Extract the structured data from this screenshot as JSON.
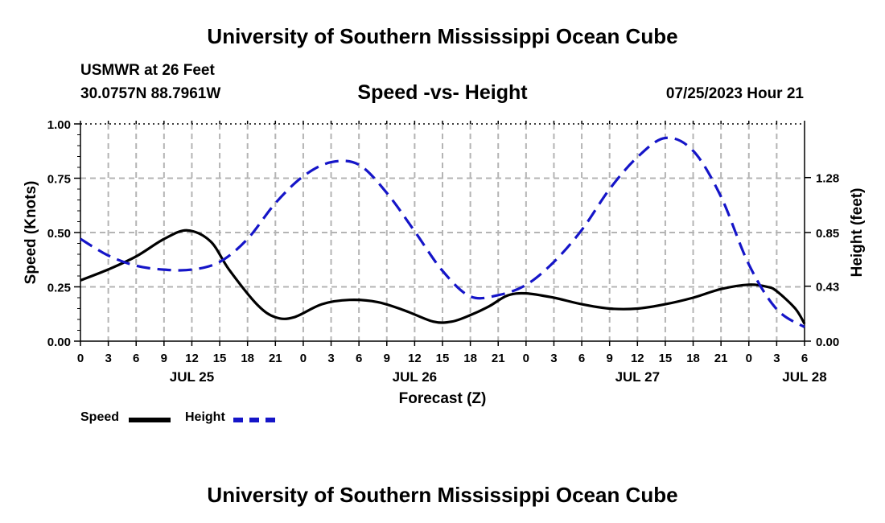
{
  "page": {
    "title_top": "University of Southern Mississippi Ocean Cube",
    "title_bottom": "University of Southern Mississippi Ocean Cube",
    "station": "USMWR at 26 Feet",
    "location": "30.0757N  88.7961W",
    "datetime": "07/25/2023 Hour 21"
  },
  "legend": {
    "speed_label": "Speed",
    "height_label": "Height"
  },
  "chart_data": {
    "type": "line",
    "title": "Speed -vs- Height",
    "xlabel": "Forecast (Z)",
    "ylabel": "Speed (Knots)",
    "y2label": "Height (feet)",
    "xlim": [
      0,
      78
    ],
    "ylim": [
      0,
      1.0
    ],
    "y2lim": [
      0,
      1.7
    ],
    "yticks": [
      "0.00",
      "0.25",
      "0.50",
      "0.75",
      "1.00"
    ],
    "y2ticks": [
      "0.00",
      "0.43",
      "0.85",
      "1.28"
    ],
    "xtick_labels": [
      "0",
      "3",
      "6",
      "9",
      "12",
      "15",
      "18",
      "21",
      "0",
      "3",
      "6",
      "9",
      "12",
      "15",
      "18",
      "21",
      "0",
      "3",
      "6",
      "9",
      "12",
      "15",
      "18",
      "21",
      "0",
      "3",
      "6"
    ],
    "date_labels": [
      {
        "label": "JUL 25",
        "hour": 12
      },
      {
        "label": "JUL 26",
        "hour": 36
      },
      {
        "label": "JUL 27",
        "hour": 60
      },
      {
        "label": "JUL 28",
        "hour": 78
      }
    ],
    "grid": true,
    "colors": {
      "speed": "#000000",
      "height": "#1515c8",
      "grid": "#b4b4b4"
    },
    "series": [
      {
        "name": "Speed",
        "axis": "left",
        "style": "solid",
        "x": [
          0,
          3,
          6,
          9,
          11.5,
          14,
          16,
          19,
          21,
          23,
          26,
          29,
          32,
          35,
          38,
          40,
          42,
          44,
          46,
          48,
          51,
          54,
          57,
          60,
          63,
          66,
          69,
          72,
          74,
          75,
          77,
          78
        ],
        "y": [
          0.28,
          0.33,
          0.39,
          0.47,
          0.51,
          0.46,
          0.33,
          0.17,
          0.11,
          0.11,
          0.17,
          0.19,
          0.18,
          0.14,
          0.09,
          0.09,
          0.12,
          0.16,
          0.21,
          0.22,
          0.2,
          0.17,
          0.15,
          0.15,
          0.17,
          0.2,
          0.24,
          0.26,
          0.25,
          0.23,
          0.15,
          0.08
        ]
      },
      {
        "name": "Height",
        "axis": "right",
        "style": "dashed",
        "x": [
          0,
          3,
          6,
          9,
          12,
          15,
          18,
          21,
          24,
          27,
          30,
          33,
          36,
          39,
          42,
          45,
          48,
          51,
          54,
          57,
          60,
          63,
          66,
          69,
          72,
          75,
          78
        ],
        "y": [
          0.8,
          0.67,
          0.59,
          0.56,
          0.56,
          0.62,
          0.8,
          1.08,
          1.29,
          1.4,
          1.38,
          1.16,
          0.86,
          0.55,
          0.35,
          0.36,
          0.44,
          0.62,
          0.87,
          1.19,
          1.44,
          1.59,
          1.49,
          1.13,
          0.6,
          0.25,
          0.11
        ]
      }
    ]
  }
}
